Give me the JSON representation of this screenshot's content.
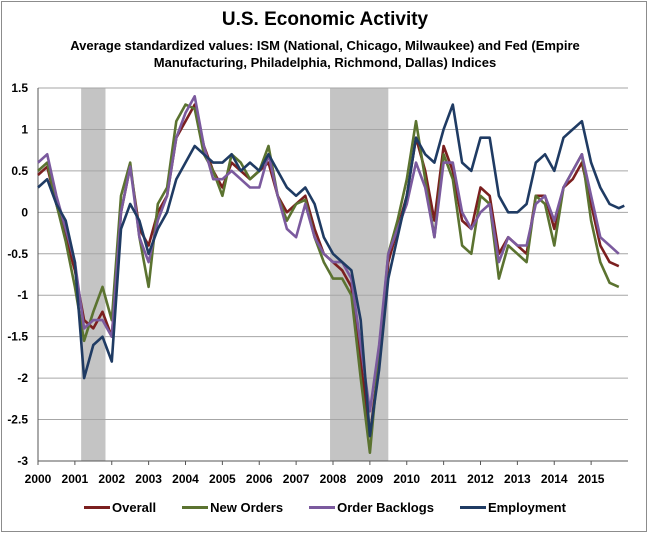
{
  "title": "U.S. Economic Activity",
  "subtitle": "Average standardized values: ISM (National, Chicago, Milwaukee) and Fed (Empire Manufacturing, Philadelphia, Richmond, Dallas) Indices",
  "chart_data": {
    "type": "line",
    "title": "U.S. Economic Activity",
    "subtitle": "Average standardized values: ISM (National, Chicago, Milwaukee) and Fed (Empire Manufacturing, Philadelphia, Richmond, Dallas) Indices",
    "xlabel": "",
    "ylabel": "",
    "xlim": [
      2000,
      2016.0
    ],
    "ylim": [
      -3,
      1.5
    ],
    "x_ticks": [
      "2000",
      "2001",
      "2002",
      "2003",
      "2004",
      "2005",
      "2006",
      "2007",
      "2008",
      "2009",
      "2010",
      "2011",
      "2012",
      "2013",
      "2014",
      "2015"
    ],
    "y_ticks": [
      1.5,
      1,
      0.5,
      0,
      -0.5,
      -1,
      -1.5,
      -2,
      -2.5,
      -3
    ],
    "y_tick_labels": [
      "1.5",
      "1",
      "0.5",
      "0",
      "-0.5",
      "-1",
      "-1.5",
      "-2",
      "-2.5",
      "-3"
    ],
    "grid": true,
    "legend_position": "bottom",
    "recessions": [
      [
        2001.17,
        2001.83
      ],
      [
        2007.92,
        2009.5
      ]
    ],
    "series": [
      {
        "name": "Overall",
        "color": "#7b1f1f",
        "x": [
          2000.0,
          2000.25,
          2000.5,
          2000.75,
          2001.0,
          2001.25,
          2001.5,
          2001.75,
          2002.0,
          2002.25,
          2002.5,
          2002.75,
          2003.0,
          2003.25,
          2003.5,
          2003.75,
          2004.0,
          2004.25,
          2004.5,
          2004.75,
          2005.0,
          2005.25,
          2005.5,
          2005.75,
          2006.0,
          2006.25,
          2006.5,
          2006.75,
          2007.0,
          2007.25,
          2007.5,
          2007.75,
          2008.0,
          2008.25,
          2008.5,
          2008.75,
          2009.0,
          2009.25,
          2009.5,
          2009.75,
          2010.0,
          2010.25,
          2010.5,
          2010.75,
          2011.0,
          2011.25,
          2011.5,
          2011.75,
          2012.0,
          2012.25,
          2012.5,
          2012.75,
          2013.0,
          2013.25,
          2013.5,
          2013.75,
          2014.0,
          2014.25,
          2014.5,
          2014.75,
          2015.0,
          2015.25,
          2015.5,
          2015.75
        ],
        "y": [
          0.45,
          0.55,
          0.1,
          -0.3,
          -0.7,
          -1.3,
          -1.4,
          -1.2,
          -1.5,
          0.0,
          0.55,
          -0.2,
          -0.4,
          0.0,
          0.2,
          0.9,
          1.1,
          1.3,
          0.8,
          0.5,
          0.3,
          0.6,
          0.5,
          0.4,
          0.5,
          0.6,
          0.2,
          0.0,
          0.1,
          0.2,
          -0.2,
          -0.5,
          -0.6,
          -0.7,
          -0.9,
          -1.8,
          -2.7,
          -1.8,
          -0.6,
          -0.2,
          0.2,
          0.9,
          0.5,
          -0.1,
          0.8,
          0.5,
          -0.1,
          -0.2,
          0.3,
          0.2,
          -0.5,
          -0.3,
          -0.4,
          -0.5,
          0.2,
          0.2,
          -0.2,
          0.3,
          0.4,
          0.6,
          0.1,
          -0.4,
          -0.6,
          -0.65
        ]
      },
      {
        "name": "New Orders",
        "color": "#5b7330",
        "x": [
          2000.0,
          2000.25,
          2000.5,
          2000.75,
          2001.0,
          2001.25,
          2001.5,
          2001.75,
          2002.0,
          2002.25,
          2002.5,
          2002.75,
          2003.0,
          2003.25,
          2003.5,
          2003.75,
          2004.0,
          2004.25,
          2004.5,
          2004.75,
          2005.0,
          2005.25,
          2005.5,
          2005.75,
          2006.0,
          2006.25,
          2006.5,
          2006.75,
          2007.0,
          2007.25,
          2007.5,
          2007.75,
          2008.0,
          2008.25,
          2008.5,
          2008.75,
          2009.0,
          2009.25,
          2009.5,
          2009.75,
          2010.0,
          2010.25,
          2010.5,
          2010.75,
          2011.0,
          2011.25,
          2011.5,
          2011.75,
          2012.0,
          2012.25,
          2012.5,
          2012.75,
          2013.0,
          2013.25,
          2013.5,
          2013.75,
          2014.0,
          2014.25,
          2014.5,
          2014.75,
          2015.0,
          2015.25,
          2015.5,
          2015.75
        ],
        "y": [
          0.5,
          0.6,
          0.1,
          -0.35,
          -0.9,
          -1.55,
          -1.2,
          -0.9,
          -1.3,
          0.2,
          0.6,
          -0.3,
          -0.9,
          0.1,
          0.3,
          1.1,
          1.3,
          1.25,
          0.7,
          0.5,
          0.2,
          0.7,
          0.6,
          0.4,
          0.5,
          0.8,
          0.2,
          -0.1,
          0.1,
          0.15,
          -0.3,
          -0.6,
          -0.8,
          -0.8,
          -1.0,
          -2.0,
          -2.9,
          -1.7,
          -0.5,
          -0.1,
          0.4,
          1.1,
          0.4,
          -0.3,
          0.7,
          0.4,
          -0.4,
          -0.5,
          0.2,
          0.1,
          -0.8,
          -0.4,
          -0.5,
          -0.6,
          0.2,
          0.1,
          -0.4,
          0.3,
          0.5,
          0.7,
          -0.1,
          -0.6,
          -0.85,
          -0.9
        ]
      },
      {
        "name": "Order Backlogs",
        "color": "#7b5a9e",
        "x": [
          2000.0,
          2000.25,
          2000.5,
          2000.75,
          2001.0,
          2001.25,
          2001.5,
          2001.75,
          2002.0,
          2002.25,
          2002.5,
          2002.75,
          2003.0,
          2003.25,
          2003.5,
          2003.75,
          2004.0,
          2004.25,
          2004.5,
          2004.75,
          2005.0,
          2005.25,
          2005.5,
          2005.75,
          2006.0,
          2006.25,
          2006.5,
          2006.75,
          2007.0,
          2007.25,
          2007.5,
          2007.75,
          2008.0,
          2008.25,
          2008.5,
          2008.75,
          2009.0,
          2009.25,
          2009.5,
          2009.75,
          2010.0,
          2010.25,
          2010.5,
          2010.75,
          2011.0,
          2011.25,
          2011.5,
          2011.75,
          2012.0,
          2012.25,
          2012.5,
          2012.75,
          2013.0,
          2013.25,
          2013.5,
          2013.75,
          2014.0,
          2014.25,
          2014.5,
          2014.75,
          2015.0,
          2015.25,
          2015.5,
          2015.75
        ],
        "y": [
          0.6,
          0.7,
          0.2,
          -0.2,
          -0.6,
          -1.4,
          -1.3,
          -1.3,
          -1.5,
          0.0,
          0.55,
          -0.3,
          -0.6,
          -0.1,
          0.2,
          0.9,
          1.2,
          1.4,
          0.8,
          0.4,
          0.4,
          0.5,
          0.4,
          0.3,
          0.3,
          0.7,
          0.2,
          -0.2,
          -0.3,
          0.1,
          -0.3,
          -0.5,
          -0.6,
          -0.6,
          -0.8,
          -1.6,
          -2.4,
          -1.6,
          -0.5,
          -0.2,
          0.1,
          0.6,
          0.3,
          -0.3,
          0.6,
          0.6,
          0.0,
          -0.2,
          0.0,
          0.1,
          -0.6,
          -0.3,
          -0.4,
          -0.4,
          0.1,
          0.2,
          -0.1,
          0.3,
          0.5,
          0.7,
          0.2,
          -0.3,
          -0.4,
          -0.5
        ]
      },
      {
        "name": "Employment",
        "color": "#1f3b63",
        "x": [
          2000.0,
          2000.25,
          2000.5,
          2000.75,
          2001.0,
          2001.25,
          2001.5,
          2001.75,
          2002.0,
          2002.25,
          2002.5,
          2002.75,
          2003.0,
          2003.25,
          2003.5,
          2003.75,
          2004.0,
          2004.25,
          2004.5,
          2004.75,
          2005.0,
          2005.25,
          2005.5,
          2005.75,
          2006.0,
          2006.25,
          2006.5,
          2006.75,
          2007.0,
          2007.25,
          2007.5,
          2007.75,
          2008.0,
          2008.25,
          2008.5,
          2008.75,
          2009.0,
          2009.25,
          2009.5,
          2009.75,
          2010.0,
          2010.25,
          2010.5,
          2010.75,
          2011.0,
          2011.25,
          2011.5,
          2011.75,
          2012.0,
          2012.25,
          2012.5,
          2012.75,
          2013.0,
          2013.25,
          2013.5,
          2013.75,
          2014.0,
          2014.25,
          2014.5,
          2014.75,
          2015.0,
          2015.25,
          2015.5,
          2015.75,
          2015.9
        ],
        "y": [
          0.3,
          0.4,
          0.1,
          -0.1,
          -0.6,
          -2.0,
          -1.6,
          -1.5,
          -1.8,
          -0.2,
          0.1,
          -0.1,
          -0.5,
          -0.2,
          0.0,
          0.4,
          0.6,
          0.8,
          0.7,
          0.6,
          0.6,
          0.7,
          0.5,
          0.6,
          0.5,
          0.7,
          0.5,
          0.3,
          0.2,
          0.3,
          0.1,
          -0.3,
          -0.5,
          -0.6,
          -0.7,
          -1.3,
          -2.7,
          -1.9,
          -0.8,
          -0.3,
          0.2,
          0.9,
          0.7,
          0.6,
          1.0,
          1.3,
          0.6,
          0.5,
          0.9,
          0.9,
          0.2,
          0.0,
          0.0,
          0.1,
          0.6,
          0.7,
          0.5,
          0.9,
          1.0,
          1.1,
          0.6,
          0.3,
          0.1,
          0.05,
          0.08
        ]
      }
    ]
  }
}
